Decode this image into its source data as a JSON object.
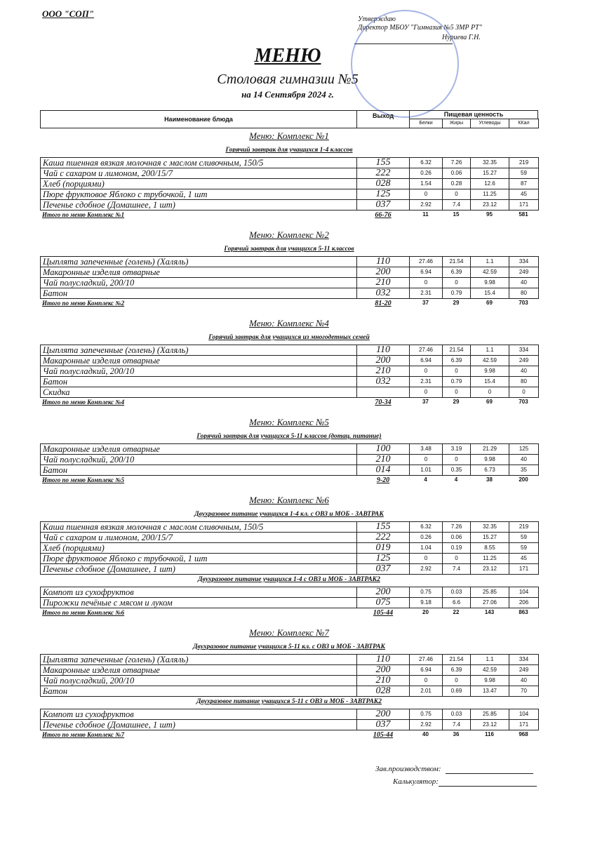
{
  "header": {
    "org": "ООО \"СОП\"",
    "approve": "Утверждаю",
    "director": "Директор МБОУ \"Гимназия №5 ЗМР РТ\"",
    "name": "Нуриева Г.Н.",
    "title": "МЕНЮ",
    "subtitle": "Столовая гимназии №5",
    "date": "на 14 Сентября 2024 г."
  },
  "table_header": {
    "dish": "Наименование блюда",
    "yield": "Выход",
    "nutrition": "Пищевая ценность",
    "cols": [
      "Белки",
      "Жиры",
      "Углеводы",
      "ККал"
    ]
  },
  "sections": [
    {
      "title": "Меню: Комплекс №1",
      "groups": [
        {
          "title": "Горячий завтрак для учащихся 1-4 классов",
          "rows": [
            [
              "Каша пшенная вязкая молочная с маслом сливочным, 150/5",
              "155",
              "6.32",
              "7.26",
              "32.35",
              "219"
            ],
            [
              "Чай с сахаром и лимоном, 200/15/7",
              "222",
              "0.26",
              "0.06",
              "15.27",
              "59"
            ],
            [
              "Хлеб (порциями)",
              "028",
              "1.54",
              "0.28",
              "12.6",
              "87"
            ],
            [
              "Пюре фруктовое Яблоко с трубочкой, 1 шт",
              "125",
              "0",
              "0",
              "11.25",
              "45"
            ],
            [
              "Печенье сдобное (Домашнее, 1 шт)",
              "037",
              "2.92",
              "7.4",
              "23.12",
              "171"
            ]
          ]
        }
      ],
      "total": [
        "Итого по меню Комплекс №1",
        "66-76",
        "11",
        "15",
        "95",
        "581"
      ]
    },
    {
      "title": "Меню: Комплекс №2",
      "groups": [
        {
          "title": "Горячий завтрак для учащихся 5-11 классов",
          "rows": [
            [
              "Цыплята запеченные (голень) (Халяль)",
              "110",
              "27.46",
              "21.54",
              "1.1",
              "334"
            ],
            [
              "Макаронные изделия отварные",
              "200",
              "6.94",
              "6.39",
              "42.59",
              "249"
            ],
            [
              "Чай полусладкий, 200/10",
              "210",
              "0",
              "0",
              "9.98",
              "40"
            ],
            [
              "Батон",
              "032",
              "2.31",
              "0.79",
              "15.4",
              "80"
            ]
          ]
        }
      ],
      "total": [
        "Итого по меню Комплекс №2",
        "81-20",
        "37",
        "29",
        "69",
        "703"
      ]
    },
    {
      "title": "Меню: Комплекс №4",
      "groups": [
        {
          "title": "Горячий завтрак для учащихся из многодетных семей",
          "rows": [
            [
              "Цыплята запеченные (голень) (Халяль)",
              "110",
              "27.46",
              "21.54",
              "1.1",
              "334"
            ],
            [
              "Макаронные изделия отварные",
              "200",
              "6.94",
              "6.39",
              "42.59",
              "249"
            ],
            [
              "Чай полусладкий, 200/10",
              "210",
              "0",
              "0",
              "9.98",
              "40"
            ],
            [
              "Батон",
              "032",
              "2.31",
              "0.79",
              "15.4",
              "80"
            ],
            [
              "Скидка",
              null,
              "0",
              "0",
              "0",
              "0"
            ]
          ]
        }
      ],
      "total": [
        "Итого по меню Комплекс №4",
        "70-34",
        "37",
        "29",
        "69",
        "703"
      ]
    },
    {
      "title": "Меню: Комплекс №5",
      "groups": [
        {
          "title": "Горячий завтрак для учащихся 5-11 классов (дотац. питание)",
          "rows": [
            [
              "Макаронные изделия отварные",
              "100",
              "3.48",
              "3.19",
              "21.29",
              "125"
            ],
            [
              "Чай полусладкий, 200/10",
              "210",
              "0",
              "0",
              "9.98",
              "40"
            ],
            [
              "Батон",
              "014",
              "1.01",
              "0.35",
              "6.73",
              "35"
            ]
          ]
        }
      ],
      "total": [
        "Итого по меню Комплекс №5",
        "9-20",
        "4",
        "4",
        "38",
        "200"
      ]
    },
    {
      "title": "Меню: Комплекс №6",
      "groups": [
        {
          "title": "Двухразовое питание учащихся 1-4 кл. с ОВЗ и МОБ - ЗАВТРАК",
          "rows": [
            [
              "Каша пшенная вязкая молочная с маслом сливочным, 150/5",
              "155",
              "6.32",
              "7.26",
              "32.35",
              "219"
            ],
            [
              "Чай с сахаром и лимоном, 200/15/7",
              "222",
              "0.26",
              "0.06",
              "15.27",
              "59"
            ],
            [
              "Хлеб (порциями)",
              "019",
              "1.04",
              "0.19",
              "8.55",
              "59"
            ],
            [
              "Пюре фруктовое Яблоко с трубочкой, 1 шт",
              "125",
              "0",
              "0",
              "11.25",
              "45"
            ],
            [
              "Печенье сдобное (Домашнее, 1 шт)",
              "037",
              "2.92",
              "7.4",
              "23.12",
              "171"
            ]
          ]
        },
        {
          "title": "Двухразовое питание учащихся 1-4 с ОВЗ и МОБ - ЗАВТРАК2",
          "rows": [
            [
              "Компот из сухофруктов",
              "200",
              "0.75",
              "0.03",
              "25.85",
              "104"
            ],
            [
              "Пирожки печёные с мясом и луком",
              "075",
              "9.18",
              "6.6",
              "27.06",
              "206"
            ]
          ]
        }
      ],
      "total": [
        "Итого по меню Комплекс №6",
        "105-44",
        "20",
        "22",
        "143",
        "863"
      ]
    },
    {
      "title": "Меню: Комплекс №7",
      "groups": [
        {
          "title": "Двухразовое питание учащихся 5-11 кл. с ОВЗ и МОБ - ЗАВТРАК",
          "rows": [
            [
              "Цыплята запеченные (голень) (Халяль)",
              "110",
              "27.46",
              "21.54",
              "1.1",
              "334"
            ],
            [
              "Макаронные изделия отварные",
              "200",
              "6.94",
              "6.39",
              "42.59",
              "249"
            ],
            [
              "Чай полусладкий, 200/10",
              "210",
              "0",
              "0",
              "9.98",
              "40"
            ],
            [
              "Батон",
              "028",
              "2.01",
              "0.69",
              "13.47",
              "70"
            ]
          ]
        },
        {
          "title": "Двухразовое питание учащихся 5-11 с ОВЗ и МОБ - ЗАВТРАК2",
          "rows": [
            [
              "Компот из сухофруктов",
              "200",
              "0.75",
              "0.03",
              "25.85",
              "104"
            ],
            [
              "Печенье сдобное (Домашнее, 1 шт)",
              "037",
              "2.92",
              "7.4",
              "23.12",
              "171"
            ]
          ]
        }
      ],
      "total": [
        "Итого по меню Комплекс №7",
        "105-44",
        "40",
        "36",
        "116",
        "968"
      ]
    }
  ],
  "footer": {
    "chief": "Зав.производством:",
    "calc": "Калькулятор:"
  }
}
